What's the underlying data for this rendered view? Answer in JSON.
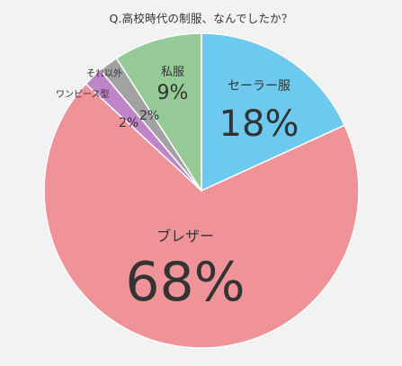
{
  "chart_data": {
    "type": "pie",
    "title": "Q.高校時代の制服、なんでしたか？",
    "slices": [
      {
        "label": "セーラー服",
        "value": 18,
        "value_label": "18%",
        "color": "#6dc9ee"
      },
      {
        "label": "ブレザー",
        "value": 68,
        "value_label": "68%",
        "color": "#ef9399"
      },
      {
        "label": "ワンピース型",
        "value": 2,
        "value_label": "2%",
        "color": "#c084c8"
      },
      {
        "label": "それ以外",
        "value": 2,
        "value_label": "2%",
        "color": "#a2a2a2"
      },
      {
        "label": "私服",
        "value": 9,
        "value_label": "9%",
        "color": "#95c996"
      }
    ],
    "start_angle_deg": 0,
    "direction": "clockwise",
    "legend": "none"
  }
}
